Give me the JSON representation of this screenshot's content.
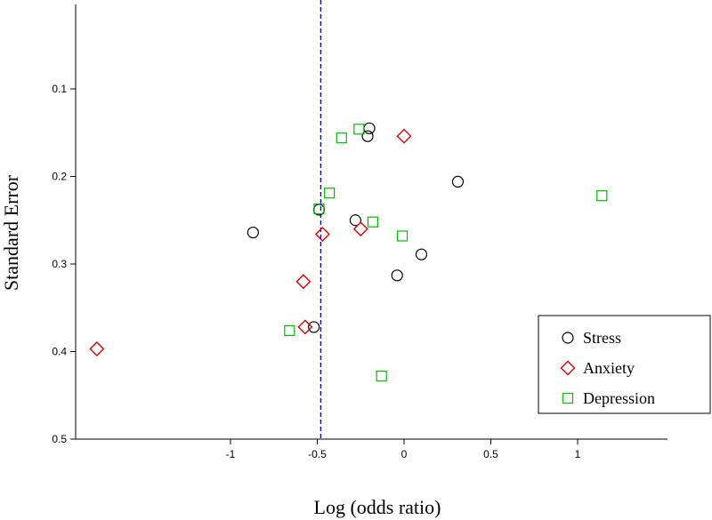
{
  "chart_data": {
    "type": "scatter",
    "title": "",
    "xlabel": "Log (odds ratio)",
    "ylabel": "Standard Error",
    "xlim": [
      -1.78,
      1.5
    ],
    "ylim": [
      0.5,
      0.0
    ],
    "x_ticks": [
      {
        "value": -1,
        "label": "-1"
      },
      {
        "value": -0.5,
        "label": "-0.5"
      },
      {
        "value": 0,
        "label": "0"
      },
      {
        "value": 0.5,
        "label": "0.5"
      },
      {
        "value": 1,
        "label": "1"
      }
    ],
    "y_ticks": [
      {
        "value": 0.1,
        "label": "0.1"
      },
      {
        "value": 0.2,
        "label": "0.2"
      },
      {
        "value": 0.3,
        "label": "0.3"
      },
      {
        "value": 0.4,
        "label": "0.4"
      },
      {
        "value": 0.5,
        "label": "0.5"
      }
    ],
    "reference_line": {
      "x": -0.48,
      "color": "#0000cc",
      "style": "dashed"
    },
    "legend_position": "bottom-right",
    "series": [
      {
        "name": "Stress",
        "marker": "circle",
        "color": "#000000",
        "points": [
          {
            "x": -0.2,
            "y": 0.145
          },
          {
            "x": -0.21,
            "y": 0.154
          },
          {
            "x": 0.31,
            "y": 0.206
          },
          {
            "x": -0.49,
            "y": 0.238
          },
          {
            "x": -0.28,
            "y": 0.25
          },
          {
            "x": -0.87,
            "y": 0.264
          },
          {
            "x": 0.1,
            "y": 0.289
          },
          {
            "x": -0.04,
            "y": 0.313
          },
          {
            "x": -0.52,
            "y": 0.372
          }
        ]
      },
      {
        "name": "Anxiety",
        "marker": "diamond",
        "color": "#dd0000",
        "points": [
          {
            "x": 0.0,
            "y": 0.154
          },
          {
            "x": -0.47,
            "y": 0.266
          },
          {
            "x": -0.25,
            "y": 0.26
          },
          {
            "x": -0.58,
            "y": 0.32
          },
          {
            "x": -0.57,
            "y": 0.372
          },
          {
            "x": -1.77,
            "y": 0.397
          }
        ]
      },
      {
        "name": "Depression",
        "marker": "square",
        "color": "#00bb00",
        "points": [
          {
            "x": -0.26,
            "y": 0.146
          },
          {
            "x": -0.36,
            "y": 0.156
          },
          {
            "x": -0.43,
            "y": 0.219
          },
          {
            "x": 1.14,
            "y": 0.222
          },
          {
            "x": -0.49,
            "y": 0.237
          },
          {
            "x": -0.18,
            "y": 0.252
          },
          {
            "x": -0.01,
            "y": 0.268
          },
          {
            "x": -0.66,
            "y": 0.376
          },
          {
            "x": -0.13,
            "y": 0.428
          }
        ]
      }
    ]
  }
}
